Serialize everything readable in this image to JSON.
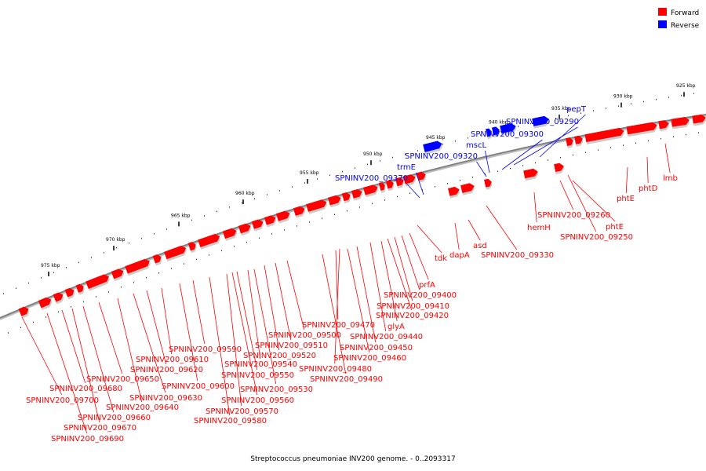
{
  "caption": "Streptococcus pneumoniae INV200 genome. - 0..2093317",
  "legend": [
    {
      "label": "Forward",
      "color": "#ff0000"
    },
    {
      "label": "Reverse",
      "color": "#0000ff"
    }
  ],
  "colors": {
    "forward": "#ff0000",
    "reverse": "#0000ff",
    "backbone": "#808080"
  },
  "scale_ticks": [
    {
      "kbp": 925,
      "label": "925 kbp"
    },
    {
      "kbp": 930,
      "label": "930 kbp"
    },
    {
      "kbp": 935,
      "label": "935 kbp"
    },
    {
      "kbp": 940,
      "label": "940 kbp"
    },
    {
      "kbp": 945,
      "label": "945 kbp"
    },
    {
      "kbp": 950,
      "label": "950 kbp"
    },
    {
      "kbp": 955,
      "label": "955 kbp"
    },
    {
      "kbp": 960,
      "label": "960 kbp"
    },
    {
      "kbp": 965,
      "label": "965 kbp"
    },
    {
      "kbp": 970,
      "label": "970 kbp"
    },
    {
      "kbp": 975,
      "label": "975 kbp"
    }
  ],
  "genes": [
    {
      "label": "pepT",
      "strand": "reverse"
    },
    {
      "label": "SPNINV200_09290",
      "strand": "reverse"
    },
    {
      "label": "SPNINV200_09300",
      "strand": "reverse"
    },
    {
      "label": "mscL",
      "strand": "reverse"
    },
    {
      "label": "SPNINV200_09320",
      "strand": "reverse"
    },
    {
      "label": "trmE",
      "strand": "reverse"
    },
    {
      "label": "SPNINV200_09370",
      "strand": "reverse"
    },
    {
      "label": "lmb",
      "strand": "forward"
    },
    {
      "label": "phtD",
      "strand": "forward"
    },
    {
      "label": "phtE",
      "strand": "forward"
    },
    {
      "label": "phtE",
      "strand": "forward"
    },
    {
      "label": "hemH",
      "strand": "forward"
    },
    {
      "label": "SPNINV200_09260",
      "strand": "forward"
    },
    {
      "label": "SPNINV200_09250",
      "strand": "forward"
    },
    {
      "label": "tdk",
      "strand": "forward"
    },
    {
      "label": "dapA",
      "strand": "forward"
    },
    {
      "label": "asd",
      "strand": "forward"
    },
    {
      "label": "SPNINV200_09330",
      "strand": "forward"
    },
    {
      "label": "prfA",
      "strand": "forward"
    },
    {
      "label": "SPNINV200_09400",
      "strand": "forward"
    },
    {
      "label": "SPNINV200_09410",
      "strand": "forward"
    },
    {
      "label": "SPNINV200_09420",
      "strand": "forward"
    },
    {
      "label": "glyA",
      "strand": "forward"
    },
    {
      "label": "SPNINV200_09440",
      "strand": "forward"
    },
    {
      "label": "SPNINV200_09450",
      "strand": "forward"
    },
    {
      "label": "SPNINV200_09460",
      "strand": "forward"
    },
    {
      "label": "SPNINV200_09470",
      "strand": "forward"
    },
    {
      "label": "SPNINV200_09480",
      "strand": "forward"
    },
    {
      "label": "SPNINV200_09490",
      "strand": "forward"
    },
    {
      "label": "SPNINV200_09500",
      "strand": "forward"
    },
    {
      "label": "SPNINV200_09510",
      "strand": "forward"
    },
    {
      "label": "SPNINV200_09520",
      "strand": "forward"
    },
    {
      "label": "SPNINV200_09530",
      "strand": "forward"
    },
    {
      "label": "SPNINV200_09540",
      "strand": "forward"
    },
    {
      "label": "SPNINV200_09550",
      "strand": "forward"
    },
    {
      "label": "SPNINV200_09560",
      "strand": "forward"
    },
    {
      "label": "SPNINV200_09570",
      "strand": "forward"
    },
    {
      "label": "SPNINV200_09580",
      "strand": "forward"
    },
    {
      "label": "SPNINV200_09590",
      "strand": "forward"
    },
    {
      "label": "SPNINV200_09600",
      "strand": "forward"
    },
    {
      "label": "SPNINV200_09610",
      "strand": "forward"
    },
    {
      "label": "SPNINV200_09620",
      "strand": "forward"
    },
    {
      "label": "SPNINV200_09630",
      "strand": "forward"
    },
    {
      "label": "SPNINV200_09640",
      "strand": "forward"
    },
    {
      "label": "SPNINV200_09650",
      "strand": "forward"
    },
    {
      "label": "SPNINV200_09660",
      "strand": "forward"
    },
    {
      "label": "SPNINV200_09670",
      "strand": "forward"
    },
    {
      "label": "SPNINV200_09680",
      "strand": "forward"
    },
    {
      "label": "SPNINV200_09690",
      "strand": "forward"
    },
    {
      "label": "SPNINV200_09700",
      "strand": "forward"
    }
  ]
}
